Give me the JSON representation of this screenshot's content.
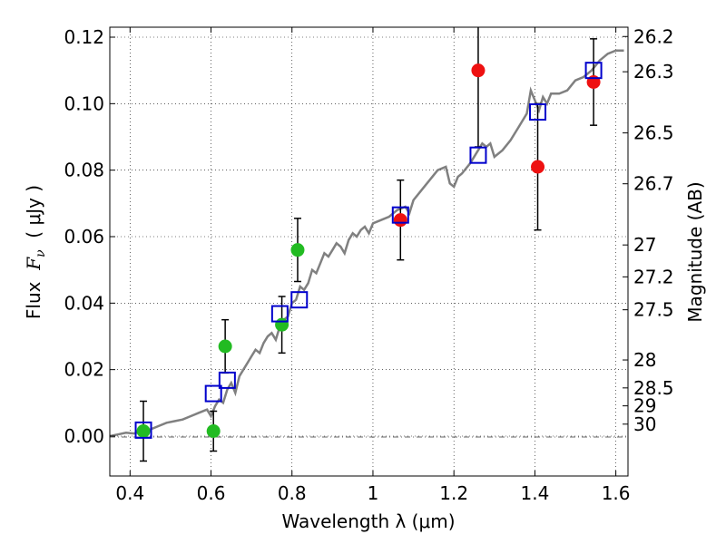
{
  "chart_data": {
    "type": "scatter",
    "xlabel": "Wavelength  λ (μm)",
    "ylabel": {
      "prefix": "Flux  ",
      "symbol": "F",
      "subscript": "ν",
      "suffix": "  ( μJy )"
    },
    "ylabel_right": "Magnitude (AB)",
    "xlim": [
      0.35,
      1.63
    ],
    "ylim": [
      -0.012,
      0.123
    ],
    "grid": true,
    "x_ticks": [
      0.4,
      0.6,
      0.8,
      1.0,
      1.2,
      1.4,
      1.6
    ],
    "x_tick_labels": [
      "0.4",
      "0.6",
      "0.8",
      "1",
      "1.2",
      "1.4",
      "1.6"
    ],
    "y_ticks": [
      0.0,
      0.02,
      0.04,
      0.06,
      0.08,
      0.1,
      0.12
    ],
    "y_tick_labels": [
      "0.00",
      "0.02",
      "0.04",
      "0.06",
      "0.08",
      "0.10",
      "0.12"
    ],
    "mag_ticks": [
      {
        "flux": 0.1202,
        "label": "26.2"
      },
      {
        "flux": 0.1096,
        "label": "26.3"
      },
      {
        "flux": 0.0912,
        "label": "26.5"
      },
      {
        "flux": 0.0759,
        "label": "26.7"
      },
      {
        "flux": 0.0575,
        "label": "27"
      },
      {
        "flux": 0.0479,
        "label": "27.2"
      },
      {
        "flux": 0.038,
        "label": "27.5"
      },
      {
        "flux": 0.0229,
        "label": "28"
      },
      {
        "flux": 0.0145,
        "label": "28.5"
      },
      {
        "flux": 0.0091,
        "label": "29"
      },
      {
        "flux": 0.0036,
        "label": "30"
      }
    ],
    "series": [
      {
        "type": "line",
        "color": "#808080",
        "x": [
          0.35,
          0.37,
          0.39,
          0.41,
          0.43,
          0.45,
          0.47,
          0.49,
          0.51,
          0.53,
          0.55,
          0.57,
          0.59,
          0.6,
          0.61,
          0.62,
          0.63,
          0.64,
          0.65,
          0.66,
          0.67,
          0.68,
          0.69,
          0.7,
          0.71,
          0.72,
          0.73,
          0.74,
          0.75,
          0.76,
          0.77,
          0.78,
          0.79,
          0.8,
          0.81,
          0.82,
          0.83,
          0.84,
          0.85,
          0.86,
          0.87,
          0.88,
          0.89,
          0.9,
          0.91,
          0.92,
          0.93,
          0.94,
          0.95,
          0.96,
          0.97,
          0.98,
          0.99,
          1.0,
          1.02,
          1.04,
          1.06,
          1.08,
          1.09,
          1.1,
          1.12,
          1.14,
          1.16,
          1.18,
          1.19,
          1.2,
          1.21,
          1.22,
          1.24,
          1.26,
          1.27,
          1.28,
          1.29,
          1.3,
          1.32,
          1.34,
          1.36,
          1.38,
          1.39,
          1.4,
          1.41,
          1.42,
          1.43,
          1.44,
          1.46,
          1.48,
          1.5,
          1.52,
          1.54,
          1.56,
          1.58,
          1.6,
          1.62
        ],
        "y": [
          0.0,
          0.0005,
          0.001,
          0.0008,
          0.0015,
          0.002,
          0.003,
          0.004,
          0.0045,
          0.005,
          0.006,
          0.007,
          0.008,
          0.006,
          0.009,
          0.011,
          0.01,
          0.014,
          0.016,
          0.013,
          0.018,
          0.02,
          0.022,
          0.024,
          0.026,
          0.025,
          0.028,
          0.03,
          0.031,
          0.029,
          0.033,
          0.035,
          0.036,
          0.04,
          0.041,
          0.045,
          0.044,
          0.046,
          0.05,
          0.049,
          0.052,
          0.055,
          0.054,
          0.056,
          0.058,
          0.057,
          0.055,
          0.059,
          0.061,
          0.06,
          0.062,
          0.063,
          0.061,
          0.064,
          0.065,
          0.066,
          0.068,
          0.069,
          0.067,
          0.071,
          0.074,
          0.077,
          0.08,
          0.081,
          0.076,
          0.075,
          0.078,
          0.079,
          0.082,
          0.086,
          0.088,
          0.087,
          0.088,
          0.084,
          0.086,
          0.089,
          0.093,
          0.097,
          0.104,
          0.101,
          0.098,
          0.102,
          0.1,
          0.103,
          0.103,
          0.104,
          0.107,
          0.108,
          0.11,
          0.113,
          0.115,
          0.116,
          0.116
        ]
      },
      {
        "type": "scatter",
        "marker": "circle",
        "color": "#22bb22",
        "points": [
          {
            "x": 0.433,
            "y": 0.0015,
            "err": 0.009
          },
          {
            "x": 0.606,
            "y": 0.0015,
            "err": 0.006
          },
          {
            "x": 0.635,
            "y": 0.027,
            "err": 0.008
          },
          {
            "x": 0.775,
            "y": 0.0335,
            "err": 0.0085
          },
          {
            "x": 0.814,
            "y": 0.056,
            "err": 0.0095
          }
        ]
      },
      {
        "type": "scatter",
        "marker": "circle",
        "color": "#ee1111",
        "points": [
          {
            "x": 1.068,
            "y": 0.065,
            "err": 0.012
          },
          {
            "x": 1.26,
            "y": 0.11,
            "err": 0.023
          },
          {
            "x": 1.407,
            "y": 0.081,
            "err": 0.019
          },
          {
            "x": 1.545,
            "y": 0.1065,
            "err": 0.013
          }
        ]
      },
      {
        "type": "scatter",
        "marker": "square-open",
        "color": "#0000cc",
        "points": [
          {
            "x": 0.433,
            "y": 0.0018
          },
          {
            "x": 0.606,
            "y": 0.0128
          },
          {
            "x": 0.64,
            "y": 0.0168
          },
          {
            "x": 0.77,
            "y": 0.0368
          },
          {
            "x": 0.818,
            "y": 0.041
          },
          {
            "x": 1.068,
            "y": 0.0665
          },
          {
            "x": 1.26,
            "y": 0.0845
          },
          {
            "x": 1.407,
            "y": 0.0975
          },
          {
            "x": 1.545,
            "y": 0.11
          }
        ]
      }
    ]
  }
}
